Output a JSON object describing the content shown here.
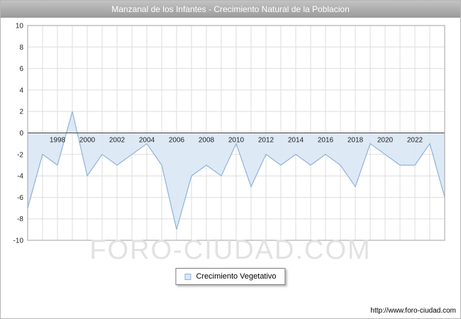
{
  "header": {
    "title": "Manzanal de los Infantes - Crecimiento Natural de la Poblacion"
  },
  "watermark": "FORO-CIUDAD.COM",
  "legend": {
    "label": "Crecimiento Vegetativo"
  },
  "footer": {
    "url": "http://www.foro-ciudad.com"
  },
  "chart_data": {
    "type": "area",
    "title": "Manzanal de los Infantes - Crecimiento Natural de la Poblacion",
    "x": [
      1996,
      1997,
      1998,
      1999,
      2000,
      2001,
      2002,
      2003,
      2004,
      2005,
      2006,
      2007,
      2008,
      2009,
      2010,
      2011,
      2012,
      2013,
      2014,
      2015,
      2016,
      2017,
      2018,
      2019,
      2020,
      2021,
      2022,
      2023,
      2024
    ],
    "series": [
      {
        "name": "Crecimiento Vegetativo",
        "values": [
          -7,
          -2,
          -3,
          2,
          -4,
          -2,
          -3,
          -2,
          -1,
          -3,
          -9,
          -4,
          -3,
          -4,
          -1,
          -5,
          -2,
          -3,
          -2,
          -3,
          -2,
          -3,
          -5,
          -1,
          -2,
          -3,
          -3,
          -1,
          -6
        ]
      }
    ],
    "ylim": [
      -10,
      10
    ],
    "ytick_step": 2,
    "yticks": [
      -10,
      -8,
      -6,
      -4,
      -2,
      0,
      2,
      4,
      6,
      8,
      10
    ],
    "xticks": [
      1998,
      2000,
      2002,
      2004,
      2006,
      2008,
      2010,
      2012,
      2014,
      2016,
      2018,
      2020,
      2022
    ],
    "grid": true,
    "legend_position": "bottom",
    "colors": {
      "line": "#8fb3d9",
      "fill": "#dae7f5",
      "grid": "#dddddd",
      "zero": "#444444",
      "plot_border": "#a0a0a0"
    }
  }
}
